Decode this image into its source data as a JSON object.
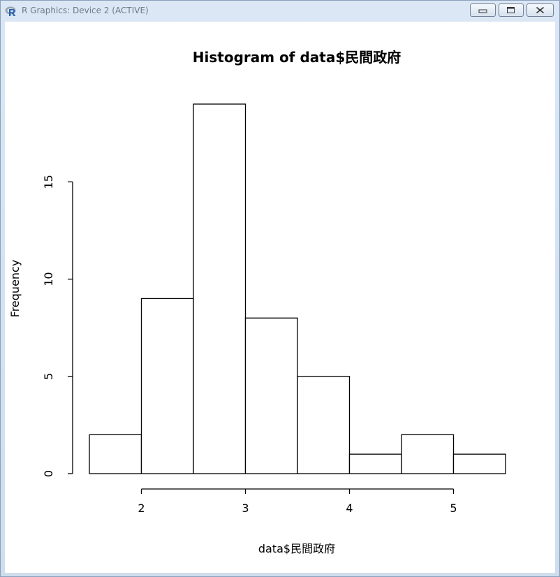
{
  "window": {
    "title": "R Graphics: Device 2 (ACTIVE)",
    "icon": "r-logo-icon",
    "controls": [
      "minimize-icon",
      "maximize-icon",
      "close-icon"
    ]
  },
  "chart_data": {
    "type": "bar",
    "title": "Histogram of data$民間政府",
    "xlabel": "data$民間政府",
    "ylabel": "Frequency",
    "bins": [
      {
        "from": 1.5,
        "to": 2.0,
        "count": 2
      },
      {
        "from": 2.0,
        "to": 2.5,
        "count": 9
      },
      {
        "from": 2.5,
        "to": 3.0,
        "count": 19
      },
      {
        "from": 3.0,
        "to": 3.5,
        "count": 8
      },
      {
        "from": 3.5,
        "to": 4.0,
        "count": 5
      },
      {
        "from": 4.0,
        "to": 4.5,
        "count": 1
      },
      {
        "from": 4.5,
        "to": 5.0,
        "count": 2
      },
      {
        "from": 5.0,
        "to": 5.5,
        "count": 1
      }
    ],
    "xticks": [
      "2",
      "3",
      "4",
      "5"
    ],
    "yticks": [
      "0",
      "5",
      "10",
      "15"
    ],
    "xlim": [
      1.5,
      5.5
    ],
    "ylim": [
      0,
      19
    ],
    "grid": false,
    "legend": "none",
    "bar_fill": "#ffffff",
    "bar_stroke": "#000000"
  }
}
